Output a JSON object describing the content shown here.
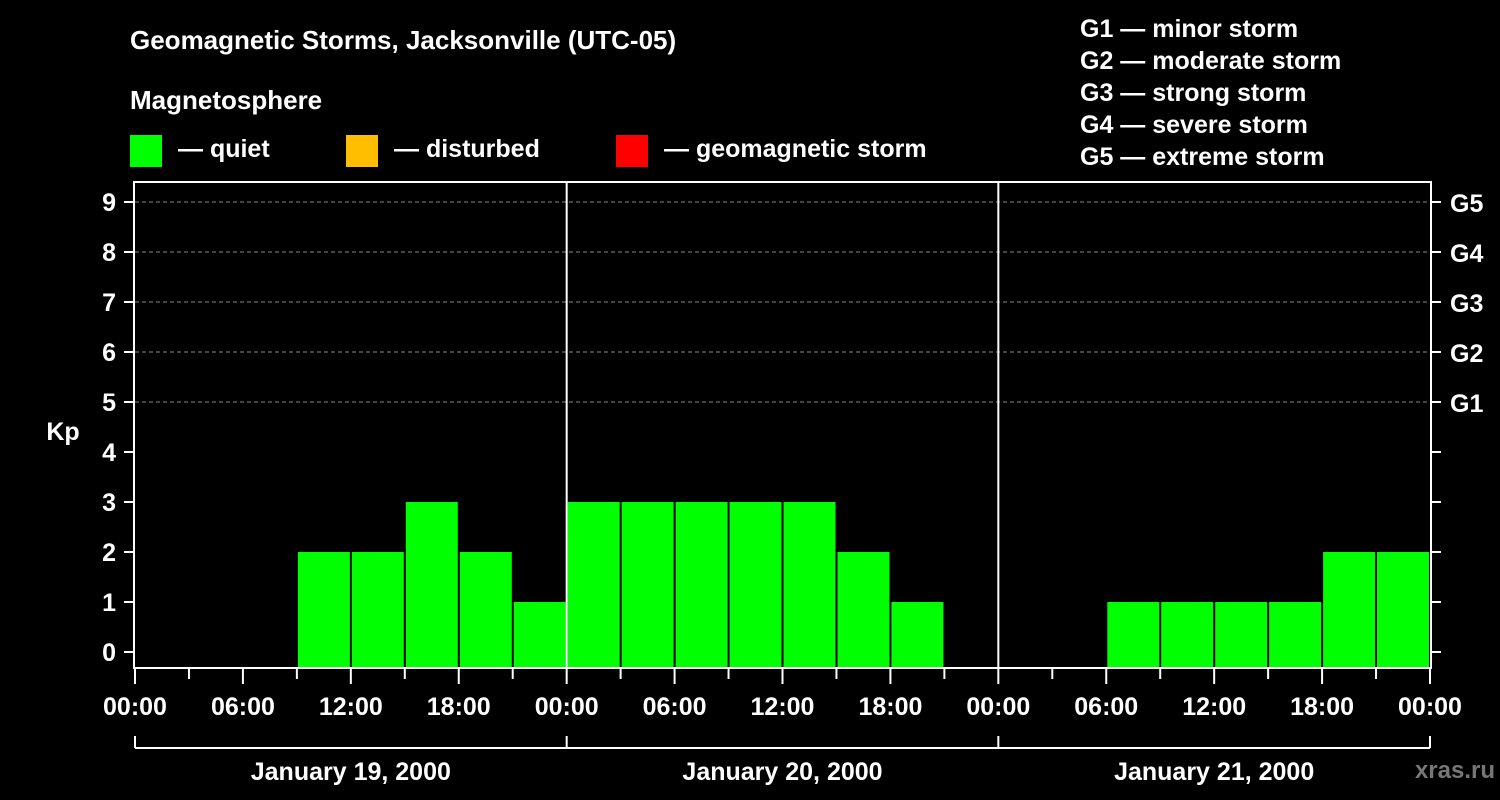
{
  "header": {
    "title": "Geomagnetic Storms, Jacksonville (UTC-05)",
    "subtitle": "Magnetosphere"
  },
  "legend": [
    {
      "label": "— quiet",
      "color": "#00ff00"
    },
    {
      "label": "— disturbed",
      "color": "#ffbf00"
    },
    {
      "label": "— geomagnetic storm",
      "color": "#ff0000"
    }
  ],
  "storm_scale": [
    "G1 — minor storm",
    "G2 — moderate storm",
    "G3 — strong storm",
    "G4 — severe storm",
    "G5 — extreme storm"
  ],
  "watermark": "xras.ru",
  "colors": {
    "quiet": "#00ff00",
    "disturbed": "#ffbf00",
    "storm": "#ff0000",
    "background": "#000000",
    "axis": "#ffffff"
  },
  "chart_data": {
    "type": "bar",
    "title": "Geomagnetic Storms, Jacksonville (UTC-05)",
    "ylabel": "Kp",
    "xlabel": "",
    "ylim": [
      0,
      9
    ],
    "yticks": [
      "0",
      "1",
      "2",
      "3",
      "4",
      "5",
      "6",
      "7",
      "8",
      "9"
    ],
    "right_ticks": [
      {
        "kp": 5,
        "label": "G1"
      },
      {
        "kp": 6,
        "label": "G2"
      },
      {
        "kp": 7,
        "label": "G3"
      },
      {
        "kp": 8,
        "label": "G4"
      },
      {
        "kp": 9,
        "label": "G5"
      }
    ],
    "xlim_hours": [
      0,
      72
    ],
    "xtick_labels": [
      "00:00",
      "06:00",
      "12:00",
      "18:00",
      "00:00",
      "06:00",
      "12:00",
      "18:00",
      "00:00",
      "06:00",
      "12:00",
      "18:00",
      "00:00"
    ],
    "days": [
      "January 19, 2000",
      "January 20, 2000",
      "January 21, 2000"
    ],
    "interval_hours": 3,
    "series": [
      {
        "name": "Kp",
        "values": [
          0,
          0,
          0,
          2,
          2,
          3,
          2,
          1,
          3,
          3,
          3,
          3,
          3,
          2,
          1,
          0,
          0,
          0,
          1,
          1,
          1,
          1,
          2,
          2
        ]
      }
    ]
  }
}
